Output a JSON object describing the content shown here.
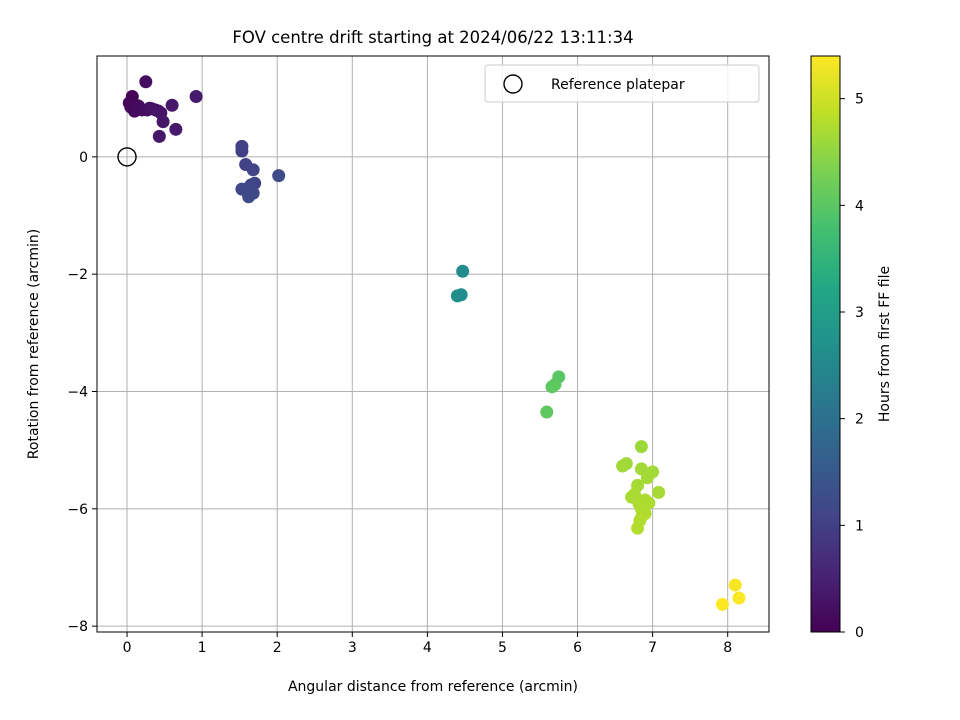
{
  "chart_data": {
    "type": "scatter",
    "title": "FOV centre drift starting at 2024/06/22 13:11:34",
    "xlabel": "Angular distance from reference (arcmin)",
    "ylabel": "Rotation from reference (arcmin)",
    "xlim": [
      -0.4,
      8.55
    ],
    "ylim": [
      -8.1,
      1.72
    ],
    "xticks": [
      0,
      1,
      2,
      3,
      4,
      5,
      6,
      7,
      8
    ],
    "yticks": [
      0,
      -2,
      -4,
      -6,
      -8
    ],
    "xtick_labels": [
      "0",
      "1",
      "2",
      "3",
      "4",
      "5",
      "6",
      "7",
      "8"
    ],
    "ytick_labels": [
      "0",
      "−2",
      "−4",
      "−6",
      "−8"
    ],
    "grid": true,
    "legend": {
      "position": "top-right",
      "entries": [
        {
          "label": "Reference platepar",
          "marker": "open-circle"
        }
      ]
    },
    "reference_point": {
      "x": 0,
      "y": 0
    },
    "colorbar": {
      "label": "Hours from first FF file",
      "min": 0,
      "max": 5.4,
      "ticks": [
        0,
        1,
        2,
        3,
        4,
        5
      ],
      "tick_labels": [
        "0",
        "1",
        "2",
        "3",
        "4",
        "5"
      ],
      "colormap": "viridis"
    },
    "points": [
      {
        "x": 0.03,
        "y": 0.92,
        "h": 0.05
      },
      {
        "x": 0.07,
        "y": 1.03,
        "h": 0.08
      },
      {
        "x": 0.05,
        "y": 0.85,
        "h": 0.1
      },
      {
        "x": 0.1,
        "y": 0.78,
        "h": 0.12
      },
      {
        "x": 0.15,
        "y": 0.87,
        "h": 0.14
      },
      {
        "x": 0.2,
        "y": 0.8,
        "h": 0.16
      },
      {
        "x": 0.25,
        "y": 1.28,
        "h": 0.18
      },
      {
        "x": 0.27,
        "y": 0.8,
        "h": 0.2
      },
      {
        "x": 0.3,
        "y": 0.83,
        "h": 0.22
      },
      {
        "x": 0.33,
        "y": 0.82,
        "h": 0.24
      },
      {
        "x": 0.38,
        "y": 0.8,
        "h": 0.26
      },
      {
        "x": 0.42,
        "y": 0.78,
        "h": 0.28
      },
      {
        "x": 0.45,
        "y": 0.75,
        "h": 0.3
      },
      {
        "x": 0.48,
        "y": 0.6,
        "h": 0.32
      },
      {
        "x": 0.43,
        "y": 0.35,
        "h": 0.34
      },
      {
        "x": 0.6,
        "y": 0.88,
        "h": 0.36
      },
      {
        "x": 0.65,
        "y": 0.47,
        "h": 0.38
      },
      {
        "x": 0.92,
        "y": 1.03,
        "h": 0.4
      },
      {
        "x": 1.53,
        "y": 0.18,
        "h": 1.0
      },
      {
        "x": 1.53,
        "y": 0.1,
        "h": 1.02
      },
      {
        "x": 1.58,
        "y": -0.13,
        "h": 1.05
      },
      {
        "x": 1.68,
        "y": -0.22,
        "h": 1.08
      },
      {
        "x": 1.7,
        "y": -0.45,
        "h": 1.1
      },
      {
        "x": 1.65,
        "y": -0.48,
        "h": 1.12
      },
      {
        "x": 1.53,
        "y": -0.55,
        "h": 1.14
      },
      {
        "x": 1.6,
        "y": -0.55,
        "h": 1.16
      },
      {
        "x": 1.68,
        "y": -0.62,
        "h": 1.18
      },
      {
        "x": 1.62,
        "y": -0.68,
        "h": 1.2
      },
      {
        "x": 2.02,
        "y": -0.32,
        "h": 1.25
      },
      {
        "x": 4.47,
        "y": -1.95,
        "h": 2.6
      },
      {
        "x": 4.45,
        "y": -2.35,
        "h": 2.62
      },
      {
        "x": 4.4,
        "y": -2.37,
        "h": 2.64
      },
      {
        "x": 5.75,
        "y": -3.75,
        "h": 4.0
      },
      {
        "x": 5.7,
        "y": -3.88,
        "h": 4.02
      },
      {
        "x": 5.66,
        "y": -3.92,
        "h": 4.04
      },
      {
        "x": 5.59,
        "y": -4.35,
        "h": 4.06
      },
      {
        "x": 6.85,
        "y": -4.94,
        "h": 4.6
      },
      {
        "x": 6.65,
        "y": -5.23,
        "h": 4.62
      },
      {
        "x": 6.6,
        "y": -5.27,
        "h": 4.63
      },
      {
        "x": 6.85,
        "y": -5.32,
        "h": 4.64
      },
      {
        "x": 7.0,
        "y": -5.37,
        "h": 4.65
      },
      {
        "x": 6.93,
        "y": -5.47,
        "h": 4.66
      },
      {
        "x": 6.8,
        "y": -5.6,
        "h": 4.67
      },
      {
        "x": 7.08,
        "y": -5.72,
        "h": 4.68
      },
      {
        "x": 6.76,
        "y": -5.75,
        "h": 4.69
      },
      {
        "x": 6.72,
        "y": -5.8,
        "h": 4.7
      },
      {
        "x": 6.9,
        "y": -5.85,
        "h": 4.71
      },
      {
        "x": 6.95,
        "y": -5.9,
        "h": 4.72
      },
      {
        "x": 6.82,
        "y": -5.92,
        "h": 4.73
      },
      {
        "x": 6.85,
        "y": -6.0,
        "h": 4.74
      },
      {
        "x": 6.9,
        "y": -6.08,
        "h": 4.75
      },
      {
        "x": 6.86,
        "y": -6.12,
        "h": 4.76
      },
      {
        "x": 6.83,
        "y": -6.2,
        "h": 4.77
      },
      {
        "x": 6.8,
        "y": -6.33,
        "h": 4.78
      },
      {
        "x": 8.1,
        "y": -7.3,
        "h": 5.35
      },
      {
        "x": 8.15,
        "y": -7.52,
        "h": 5.38
      },
      {
        "x": 7.93,
        "y": -7.63,
        "h": 5.4
      }
    ]
  }
}
